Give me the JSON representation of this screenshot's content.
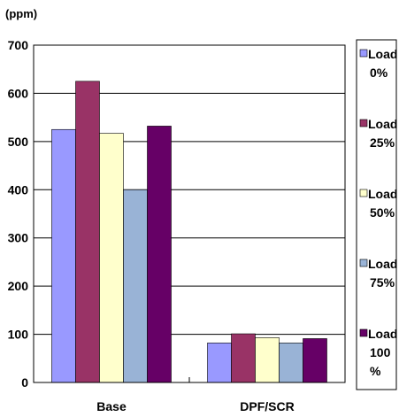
{
  "chart_data": {
    "type": "bar",
    "ylabel": "(ppm)",
    "categories": [
      "Base",
      "DPF/SCR"
    ],
    "ylim": [
      0,
      700
    ],
    "yticks": [
      0,
      100,
      200,
      300,
      400,
      500,
      600,
      700
    ],
    "grid": true,
    "legend_position": "right",
    "series": [
      {
        "name": "Load 0%",
        "label_lines": [
          "Load",
          "0%"
        ],
        "color": "#9999ff",
        "values": [
          525,
          82
        ]
      },
      {
        "name": "Load 25%",
        "label_lines": [
          "Load",
          "25%"
        ],
        "color": "#993366",
        "values": [
          625,
          101
        ]
      },
      {
        "name": "Load 50%",
        "label_lines": [
          "Load",
          "50%"
        ],
        "color": "#ffffcc",
        "values": [
          517,
          93
        ]
      },
      {
        "name": "Load 75%",
        "label_lines": [
          "Load",
          "75%"
        ],
        "color": "#99b3d6",
        "values": [
          400,
          82
        ]
      },
      {
        "name": "Load 100%",
        "label_lines": [
          "Load",
          "100",
          "%"
        ],
        "color": "#660066",
        "values": [
          532,
          91
        ]
      }
    ]
  }
}
